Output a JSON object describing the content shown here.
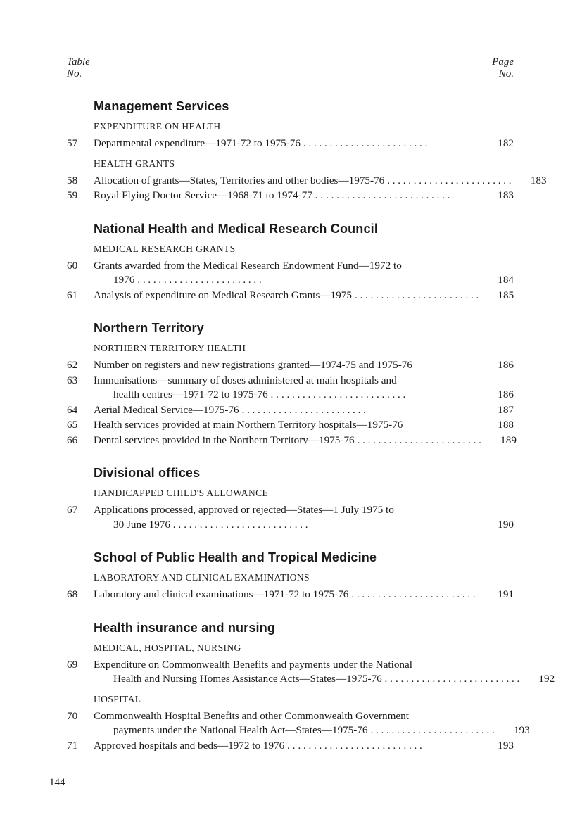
{
  "header": {
    "left_top": "Table",
    "left_bottom": "No.",
    "right_top": "Page",
    "right_bottom": "No."
  },
  "sections": [
    {
      "title": "Management Services",
      "groups": [
        {
          "subhead": "expenditure on health",
          "entries": [
            {
              "tno": "57",
              "lines": [
                {
                  "text": "Departmental expenditure—1971-72 to 1975-76",
                  "leaders": true,
                  "page": "182"
                }
              ]
            }
          ]
        },
        {
          "subhead": "health grants",
          "entries": [
            {
              "tno": "58",
              "lines": [
                {
                  "text": "Allocation of grants—States, Territories and other bodies—1975-76",
                  "leaders": true,
                  "page": "183"
                }
              ]
            },
            {
              "tno": "59",
              "lines": [
                {
                  "text": "Royal Flying Doctor Service—1968-71 to 1974-77 . .",
                  "leaders": true,
                  "page": "183"
                }
              ]
            }
          ]
        }
      ]
    },
    {
      "title": "National Health and Medical Research Council",
      "groups": [
        {
          "subhead": "medical research grants",
          "entries": [
            {
              "tno": "60",
              "lines": [
                {
                  "text": "Grants awarded from the Medical Research Endowment Fund—1972 to",
                  "leaders": false
                },
                {
                  "text": "1976",
                  "indent": true,
                  "leaders": true,
                  "page": "184"
                }
              ]
            },
            {
              "tno": "61",
              "lines": [
                {
                  "text": "Analysis of expenditure on Medical Research Grants—1975",
                  "leaders": true,
                  "page": "185"
                }
              ]
            }
          ]
        }
      ]
    },
    {
      "title": "Northern Territory",
      "groups": [
        {
          "subhead": "northern territory health",
          "entries": [
            {
              "tno": "62",
              "lines": [
                {
                  "text": "Number on registers and new registrations granted—1974-75 and 1975-76",
                  "leaders": false,
                  "page": "186"
                }
              ]
            },
            {
              "tno": "63",
              "lines": [
                {
                  "text": "Immunisations—summary of doses administered at main hospitals and",
                  "leaders": false
                },
                {
                  "text": "health centres—1971-72 to 1975-76 . .",
                  "indent": true,
                  "leaders": true,
                  "page": "186"
                }
              ]
            },
            {
              "tno": "64",
              "lines": [
                {
                  "text": "Aerial Medical Service—1975-76",
                  "leaders": true,
                  "page": "187"
                }
              ]
            },
            {
              "tno": "65",
              "lines": [
                {
                  "text": "Health services provided at main Northern Territory hospitals—1975-76",
                  "leaders": false,
                  "page": "188"
                }
              ]
            },
            {
              "tno": "66",
              "lines": [
                {
                  "text": "Dental services provided in the Northern Territory—1975-76",
                  "leaders": true,
                  "page": "189"
                }
              ]
            }
          ]
        }
      ]
    },
    {
      "title": "Divisional offices",
      "groups": [
        {
          "subhead": "handicapped child's allowance",
          "entries": [
            {
              "tno": "67",
              "lines": [
                {
                  "text": "Applications processed, approved or rejected—States—1 July 1975 to",
                  "leaders": false
                },
                {
                  "text": "30 June 1976 . .",
                  "indent": true,
                  "leaders": true,
                  "page": "190"
                }
              ]
            }
          ]
        }
      ]
    },
    {
      "title": "School of Public Health and Tropical Medicine",
      "groups": [
        {
          "subhead": "laboratory and clinical examinations",
          "entries": [
            {
              "tno": "68",
              "lines": [
                {
                  "text": "Laboratory and clinical examinations—1971-72 to 1975-76",
                  "leaders": true,
                  "page": "191"
                }
              ]
            }
          ]
        }
      ]
    },
    {
      "title": "Health insurance and nursing",
      "groups": [
        {
          "subhead": "medical, hospital, nursing",
          "entries": [
            {
              "tno": "69",
              "lines": [
                {
                  "text": "Expenditure on Commonwealth Benefits and payments under the National",
                  "leaders": false
                },
                {
                  "text": "Health and Nursing Homes Assistance Acts—States—1975-76 . .",
                  "indent": true,
                  "leaders": true,
                  "page": "192"
                }
              ]
            }
          ]
        },
        {
          "subhead": "hospital",
          "entries": [
            {
              "tno": "70",
              "lines": [
                {
                  "text": "Commonwealth Hospital Benefits and other Commonwealth Government",
                  "leaders": false
                },
                {
                  "text": "payments under the National Health Act—States—1975-76",
                  "indent": true,
                  "leaders": true,
                  "page": "193"
                }
              ]
            },
            {
              "tno": "71",
              "lines": [
                {
                  "text": "Approved hospitals and beds—1972 to 1976 . .",
                  "leaders": true,
                  "page": "193"
                }
              ]
            }
          ]
        }
      ]
    }
  ],
  "footer": "144"
}
